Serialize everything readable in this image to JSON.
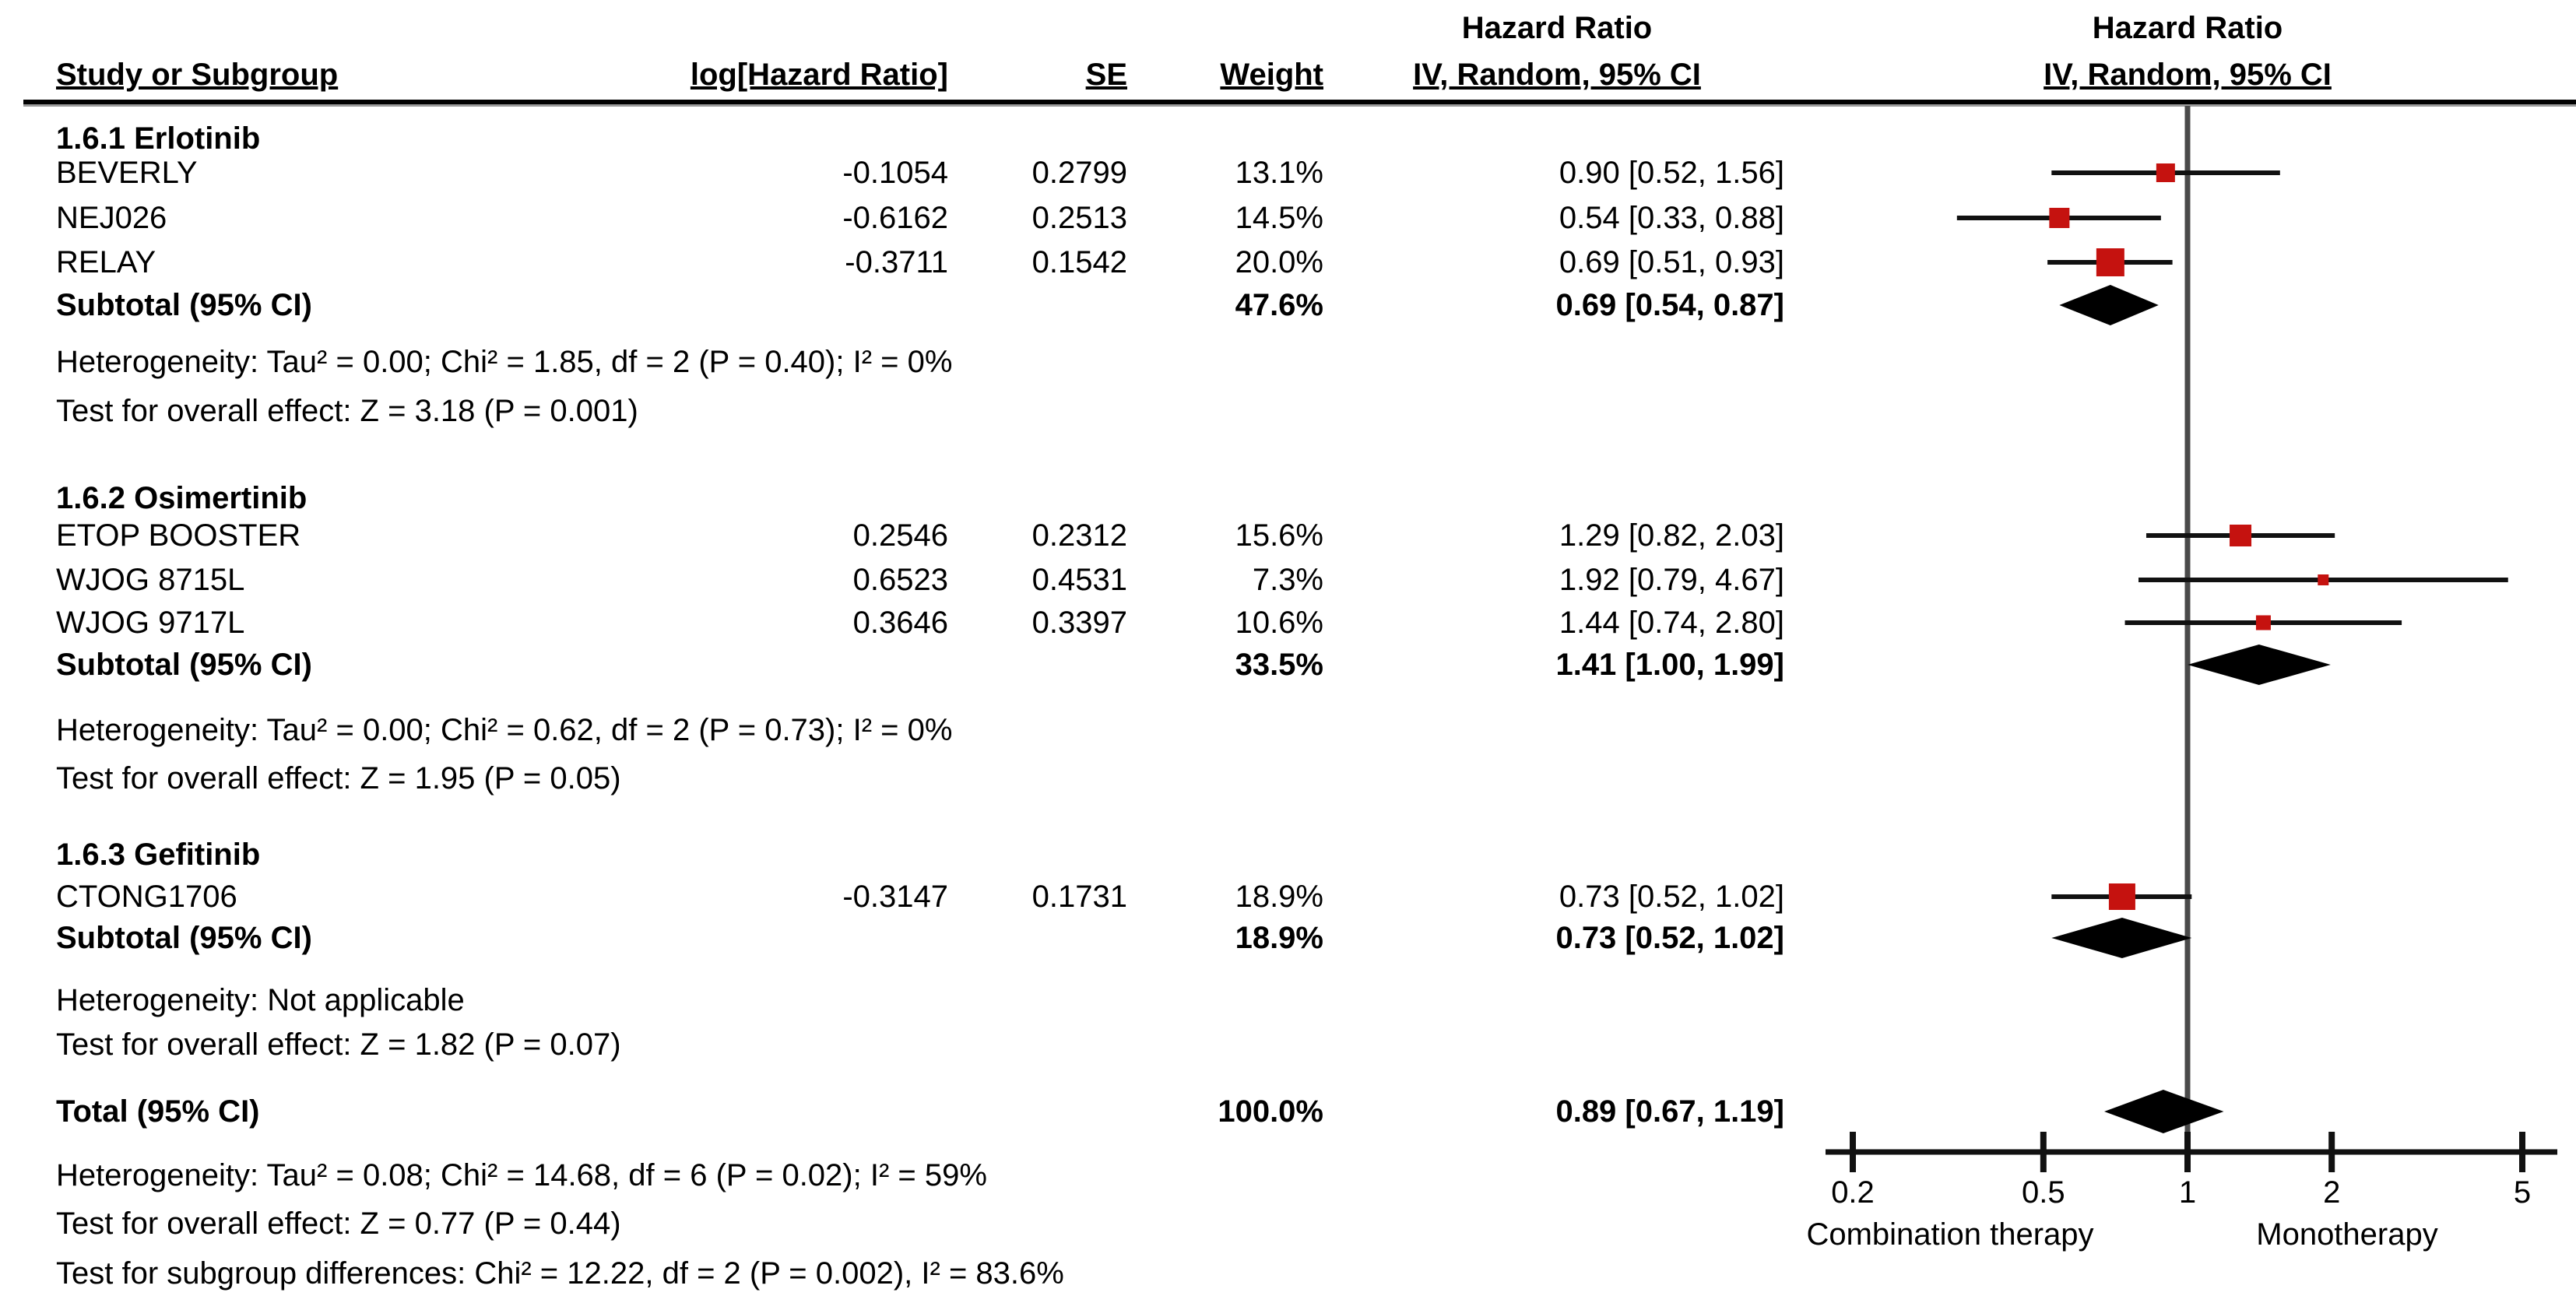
{
  "chart_data": {
    "type": "forest",
    "effect_measure": "Hazard Ratio",
    "hazard_header": "Hazard Ratio",
    "model_header": "IV, Random, 95% CI",
    "columns": {
      "study": "Study or Subgroup",
      "log_hr": "log[Hazard Ratio]",
      "se": "SE",
      "weight": "Weight",
      "ci": "IV, Random, 95% CI"
    },
    "groups": [
      {
        "title": "1.6.1 Erlotinib",
        "studies": [
          {
            "name": "BEVERLY",
            "log_hr": "-0.1054",
            "se": "0.2799",
            "weight": "13.1%",
            "weight_pct": 13.1,
            "ci_label": "0.90 [0.52, 1.56]",
            "hr": 0.9,
            "lo": 0.52,
            "hi": 1.56
          },
          {
            "name": "NEJ026",
            "log_hr": "-0.6162",
            "se": "0.2513",
            "weight": "14.5%",
            "weight_pct": 14.5,
            "ci_label": "0.54 [0.33, 0.88]",
            "hr": 0.54,
            "lo": 0.33,
            "hi": 0.88
          },
          {
            "name": "RELAY",
            "log_hr": "-0.3711",
            "se": "0.1542",
            "weight": "20.0%",
            "weight_pct": 20.0,
            "ci_label": "0.69 [0.51, 0.93]",
            "hr": 0.69,
            "lo": 0.51,
            "hi": 0.93
          }
        ],
        "subtotal": {
          "label": "Subtotal (95% CI)",
          "weight": "47.6%",
          "ci_label": "0.69 [0.54, 0.87]",
          "hr": 0.69,
          "lo": 0.54,
          "hi": 0.87
        },
        "heterogeneity": "Heterogeneity: Tau² = 0.00; Chi² = 1.85, df = 2 (P = 0.40); I² = 0%",
        "overall_effect": "Test for overall effect: Z = 3.18 (P = 0.001)"
      },
      {
        "title": "1.6.2 Osimertinib",
        "studies": [
          {
            "name": "ETOP BOOSTER",
            "log_hr": "0.2546",
            "se": "0.2312",
            "weight": "15.6%",
            "weight_pct": 15.6,
            "ci_label": "1.29 [0.82, 2.03]",
            "hr": 1.29,
            "lo": 0.82,
            "hi": 2.03
          },
          {
            "name": "WJOG 8715L",
            "log_hr": "0.6523",
            "se": "0.4531",
            "weight": "7.3%",
            "weight_pct": 7.3,
            "ci_label": "1.92 [0.79, 4.67]",
            "hr": 1.92,
            "lo": 0.79,
            "hi": 4.67
          },
          {
            "name": "WJOG 9717L",
            "log_hr": "0.3646",
            "se": "0.3397",
            "weight": "10.6%",
            "weight_pct": 10.6,
            "ci_label": "1.44 [0.74, 2.80]",
            "hr": 1.44,
            "lo": 0.74,
            "hi": 2.8
          }
        ],
        "subtotal": {
          "label": "Subtotal (95% CI)",
          "weight": "33.5%",
          "ci_label": "1.41 [1.00, 1.99]",
          "hr": 1.41,
          "lo": 1.0,
          "hi": 1.99
        },
        "heterogeneity": "Heterogeneity: Tau² = 0.00; Chi² = 0.62, df = 2 (P = 0.73); I² = 0%",
        "overall_effect": "Test for overall effect: Z = 1.95 (P = 0.05)"
      },
      {
        "title": "1.6.3 Gefitinib",
        "studies": [
          {
            "name": "CTONG1706",
            "log_hr": "-0.3147",
            "se": "0.1731",
            "weight": "18.9%",
            "weight_pct": 18.9,
            "ci_label": "0.73 [0.52, 1.02]",
            "hr": 0.73,
            "lo": 0.52,
            "hi": 1.02
          }
        ],
        "subtotal": {
          "label": "Subtotal (95% CI)",
          "weight": "18.9%",
          "ci_label": "0.73 [0.52, 1.02]",
          "hr": 0.73,
          "lo": 0.52,
          "hi": 1.02
        },
        "heterogeneity": "Heterogeneity: Not applicable",
        "overall_effect": "Test for overall effect: Z = 1.82 (P = 0.07)"
      }
    ],
    "total": {
      "label": "Total (95% CI)",
      "weight": "100.0%",
      "ci_label": "0.89 [0.67, 1.19]",
      "hr": 0.89,
      "lo": 0.67,
      "hi": 1.19
    },
    "footer_lines": [
      "Heterogeneity: Tau² = 0.08; Chi² = 14.68, df = 6 (P = 0.02); I² = 59%",
      "Test for overall effect: Z = 0.77 (P = 0.44)",
      "Test for subgroup differences: Chi² = 12.22, df = 2 (P = 0.002), I² = 83.6%"
    ],
    "axis": {
      "scale": "log",
      "xlim": [
        0.2,
        5
      ],
      "ticks": [
        0.2,
        0.5,
        1,
        2,
        5
      ],
      "tick_labels": [
        "0.2",
        "0.5",
        "1",
        "2",
        "5"
      ],
      "left_caption": "Combination therapy",
      "right_caption": "Monotherapy"
    }
  },
  "colors": {
    "marker": "#C5120F",
    "diamond": "#000000",
    "ci_line": "#111111",
    "null_line": "#4a4a4a",
    "axis_line": "#111111",
    "text": "#000000",
    "background": "#FFFFFF"
  }
}
